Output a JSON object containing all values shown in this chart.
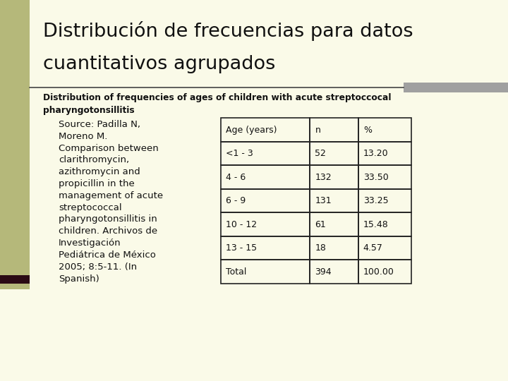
{
  "title_line1": "Distribución de frecuencias para datos",
  "title_line2": "cuantitativos agrupados",
  "subtitle": "Distribution of frequencies of ages of children with acute streptoccocal\npharyngotonsillitis",
  "source_text": "Source: Padilla N,\nMoreno M.\nComparison between\nclarithromycin,\nazithromycin and\npropicillin in the\nmanagement of acute\nstreptococcal\npharyngotonsillitis in\nchildren. Archivos de\nInvestigación\nPediátrica de México\n2005; 8:5-11. (In\nSpanish)",
  "table_headers": [
    "Age (years)",
    "n",
    "%"
  ],
  "table_rows": [
    [
      "<1 - 3",
      "52",
      "13.20"
    ],
    [
      "4 - 6",
      "132",
      "33.50"
    ],
    [
      "6 - 9",
      "131",
      "33.25"
    ],
    [
      "10 - 12",
      "61",
      "15.48"
    ],
    [
      "13 - 15",
      "18",
      "4.57"
    ],
    [
      "Total",
      "394",
      "100.00"
    ]
  ],
  "bg_color": "#fafae8",
  "left_bar_color": "#b5b87a",
  "right_bar_color": "#a0a0a0",
  "dark_line_color": "#2a0a14",
  "sep_line_color": "#444444",
  "table_border_color": "#222222",
  "title_color": "#111111",
  "text_color": "#111111"
}
